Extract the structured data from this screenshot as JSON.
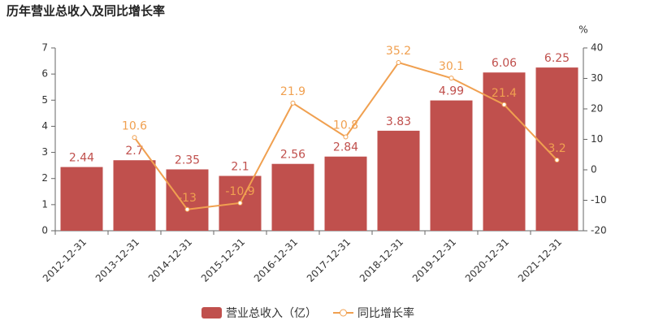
{
  "chart_data": {
    "type": "bar",
    "title": "历年营业总收入及同比增长率",
    "y2_label": "%",
    "categories": [
      "2012-12-31",
      "2013-12-31",
      "2014-12-31",
      "2015-12-31",
      "2016-12-31",
      "2017-12-31",
      "2018-12-31",
      "2019-12-31",
      "2020-12-31",
      "2021-12-31"
    ],
    "series": [
      {
        "name": "营业总收入（亿）",
        "type": "bar",
        "color": "#c0504d",
        "values": [
          2.44,
          2.7,
          2.35,
          2.1,
          2.56,
          2.84,
          3.83,
          4.99,
          6.06,
          6.25
        ]
      },
      {
        "name": "同比增长率",
        "type": "line",
        "axis": "y2",
        "color": "#f0a050",
        "values": [
          null,
          10.6,
          -13,
          -10.9,
          21.9,
          10.8,
          35.2,
          30.1,
          21.4,
          3.2
        ]
      }
    ],
    "ylim": [
      0,
      7
    ],
    "yticks": [
      0,
      1,
      2,
      3,
      4,
      5,
      6,
      7
    ],
    "y2lim": [
      -20,
      40
    ],
    "y2ticks": [
      -20,
      -10,
      0,
      10,
      20,
      30,
      40
    ]
  }
}
